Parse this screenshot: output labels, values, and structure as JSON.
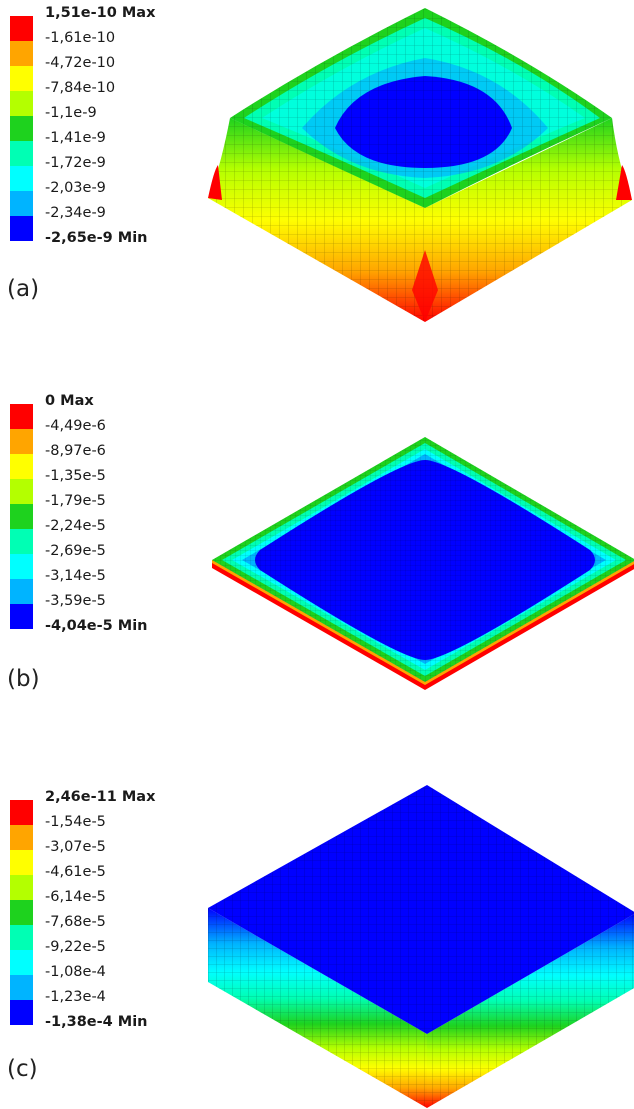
{
  "colors": [
    "#ff0000",
    "#ffa500",
    "#ffff00",
    "#b4ff00",
    "#1ed21e",
    "#00ffb4",
    "#00ffff",
    "#00b4ff",
    "#0000ff"
  ],
  "panels": [
    {
      "tag": "(a)",
      "labels": [
        "1,51e-10 Max",
        "-1,61e-10",
        "-4,72e-10",
        "-7,84e-10",
        "-1,1e-9",
        "-1,41e-9",
        "-1,72e-9",
        "-2,03e-9",
        "-2,34e-9",
        "-2,65e-9 Min"
      ]
    },
    {
      "tag": "(b)",
      "labels": [
        "0 Max",
        "-4,49e-6",
        "-8,97e-6",
        "-1,35e-5",
        "-1,79e-5",
        "-2,24e-5",
        "-2,69e-5",
        "-3,14e-5",
        "-3,59e-5",
        "-4,04e-5 Min"
      ]
    },
    {
      "tag": "(c)",
      "labels": [
        "2,46e-11 Max",
        "-1,54e-5",
        "-3,07e-5",
        "-4,61e-5",
        "-6,14e-5",
        "-7,68e-5",
        "-9,22e-5",
        "-1,08e-4",
        "-1,23e-4",
        "-1,38e-4 Min"
      ]
    }
  ]
}
